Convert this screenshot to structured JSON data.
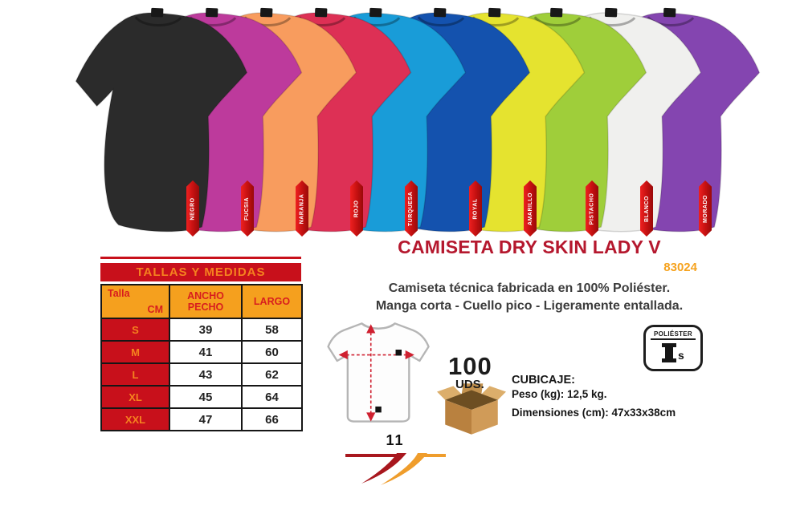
{
  "product": {
    "title": "CAMISETA DRY SKIN LADY V",
    "code": "83024",
    "description_line1": "Camiseta técnica fabricada en 100% Poliéster.",
    "description_line2": "Manga corta - Cuello pico - Ligeramente entallada."
  },
  "colors": [
    {
      "name": "NEGRO",
      "hex": "#2b2b2b"
    },
    {
      "name": "FUCSIA",
      "hex": "#bd3a9c"
    },
    {
      "name": "NARANJA",
      "hex": "#f89c5e"
    },
    {
      "name": "ROJO",
      "hex": "#dd3055"
    },
    {
      "name": "TURQUESA",
      "hex": "#199cd8"
    },
    {
      "name": "ROYAL",
      "hex": "#1452ae"
    },
    {
      "name": "AMARILLO",
      "hex": "#e5e32f"
    },
    {
      "name": "PISTACHO",
      "hex": "#9fce3a"
    },
    {
      "name": "BLANCO",
      "hex": "#f0f0ee"
    },
    {
      "name": "MORADO",
      "hex": "#8445b0"
    }
  ],
  "size_table": {
    "title": "TALLAS Y MEDIDAS",
    "corner": {
      "top_label": "Talla",
      "bottom_label": "CM"
    },
    "columns": [
      "ANCHO PECHO",
      "LARGO"
    ],
    "rows": [
      {
        "size": "S",
        "ancho_pecho": "39",
        "largo": "58"
      },
      {
        "size": "M",
        "ancho_pecho": "41",
        "largo": "60"
      },
      {
        "size": "L",
        "ancho_pecho": "43",
        "largo": "62"
      },
      {
        "size": "XL",
        "ancho_pecho": "45",
        "largo": "64"
      },
      {
        "size": "XXL",
        "ancho_pecho": "47",
        "largo": "66"
      }
    ]
  },
  "packaging": {
    "units_value": "100",
    "units_label": "UDS.",
    "cubicaje_title": "CUBICAJE:",
    "weight_line": "Peso (kg): 12,5 kg.",
    "dimensions_line": "Dimensiones (cm): 47x33x38cm"
  },
  "material_badge": {
    "label": "POLIÉSTER",
    "icon_letter": "s"
  },
  "brand_logo": {
    "number": "11"
  },
  "theme": {
    "red": "#c8101b",
    "orange": "#f5a01e",
    "orange_text": "#f5821f",
    "title_red": "#b5182e",
    "code_orange": "#f6a21d",
    "text_dark": "#3c3c3c"
  }
}
